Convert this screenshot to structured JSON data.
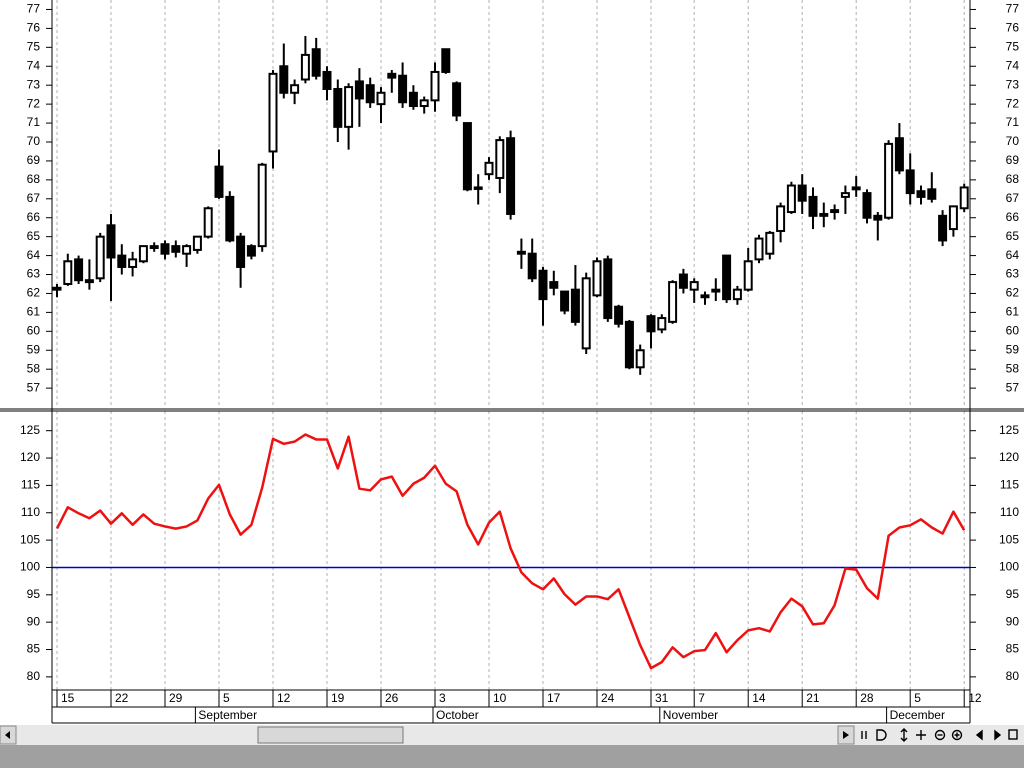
{
  "chart_data": [
    {
      "type": "candlestick",
      "categories": [
        "15",
        null,
        null,
        null,
        null,
        "22",
        null,
        null,
        null,
        null,
        "29",
        null,
        null,
        null,
        null,
        "5",
        null,
        null,
        null,
        null,
        "12",
        null,
        null,
        null,
        null,
        "19",
        null,
        null,
        null,
        null,
        "26",
        null,
        null,
        null,
        null,
        "3",
        null,
        null,
        null,
        null,
        "10",
        null,
        null,
        null,
        null,
        "17",
        null,
        null,
        null,
        null,
        "24",
        null,
        null,
        null,
        null,
        "31",
        null,
        null,
        null,
        "7",
        null,
        null,
        null,
        null,
        "14",
        null,
        null,
        null,
        null,
        "21",
        null,
        null,
        null,
        null,
        "28",
        null,
        null,
        null,
        null,
        "5",
        null,
        null,
        null,
        null,
        "12"
      ],
      "months": [
        null,
        null,
        null,
        null,
        null,
        null,
        null,
        null,
        null,
        null,
        null,
        null,
        null,
        "September",
        null,
        null,
        null,
        null,
        null,
        null,
        null,
        null,
        null,
        null,
        null,
        null,
        null,
        null,
        null,
        null,
        null,
        null,
        null,
        null,
        null,
        "October",
        null,
        null,
        null,
        null,
        null,
        null,
        null,
        null,
        null,
        null,
        null,
        null,
        null,
        null,
        null,
        null,
        null,
        null,
        null,
        null,
        "November",
        null,
        null,
        null,
        null,
        null,
        null,
        null,
        null,
        null,
        null,
        null,
        null,
        null,
        null,
        null,
        null,
        null,
        null,
        null,
        null,
        "December",
        null,
        null,
        null,
        null,
        null,
        null,
        null
      ],
      "open": [
        62.2,
        62.5,
        63.8,
        62.7,
        62.8,
        65.6,
        64,
        63.4,
        63.7,
        64.4,
        64.6,
        64.5,
        64.1,
        64.3,
        65,
        68.7,
        67.1,
        65,
        64.5,
        64.5,
        69.5,
        74,
        72.6,
        73.3,
        74.9,
        73.7,
        72.8,
        70.8,
        73.2,
        73,
        72,
        73.6,
        73.5,
        72.6,
        71.9,
        72.2,
        74.9,
        73.1,
        71,
        67.6,
        68.3,
        68.1,
        70.2,
        64.2,
        64.1,
        63.2,
        62.6,
        62.1,
        62.2,
        59.1,
        61.9,
        63.8,
        61.3,
        60.5,
        58.1,
        60.8,
        60.1,
        60.5,
        63,
        62.2,
        61.9,
        62.1,
        64,
        61.7,
        62.2,
        63.8,
        64.1,
        65.3,
        66.3,
        67.7,
        67.1,
        66.2,
        66.3,
        67.1,
        67.5,
        67.3,
        66.1,
        66,
        70.2,
        68.5,
        67.4,
        67.5,
        66.1,
        65.4,
        66.5
      ],
      "high": [
        62.5,
        64.1,
        64,
        63.8,
        65.2,
        66.2,
        64.6,
        64.2,
        64.5,
        64.7,
        64.8,
        64.8,
        64.6,
        65,
        66.6,
        69.6,
        67.4,
        65.2,
        64.6,
        68.9,
        73.8,
        75.2,
        73.3,
        75.6,
        75.5,
        74,
        73.3,
        73.1,
        73.9,
        73.4,
        72.9,
        73.8,
        74.2,
        73,
        72.4,
        74.2,
        74.9,
        73.2,
        71,
        68.3,
        69.2,
        70.3,
        70.6,
        64.9,
        64.9,
        63.4,
        63.2,
        62.1,
        63.5,
        63.1,
        63.9,
        64,
        61.4,
        60.6,
        59.3,
        60.9,
        60.9,
        62.7,
        63.3,
        62.8,
        62.1,
        62.8,
        64,
        62.4,
        64.4,
        65.1,
        65.3,
        66.8,
        67.9,
        68.3,
        67.6,
        66.8,
        66.7,
        67.7,
        68.2,
        67.5,
        66.3,
        70.1,
        71,
        69.4,
        67.7,
        68.4,
        66.4,
        66.6,
        67.8
      ],
      "low": [
        61.8,
        62.4,
        62.5,
        62.2,
        62.6,
        61.6,
        63,
        62.9,
        63.6,
        64.2,
        63.8,
        63.9,
        63.4,
        64.1,
        64.9,
        67,
        64.7,
        62.3,
        63.8,
        64.2,
        68.6,
        72.3,
        72,
        73.1,
        73.3,
        72.2,
        70,
        69.6,
        70.8,
        71.8,
        71,
        72.6,
        71.8,
        71.7,
        71.5,
        71.6,
        73.6,
        71.1,
        67.4,
        66.7,
        68,
        67.3,
        65.9,
        63.3,
        62.6,
        60.3,
        61.9,
        60.9,
        60.3,
        58.8,
        61.8,
        60.5,
        60.2,
        58,
        57.7,
        59.1,
        59.9,
        60.4,
        62,
        61.5,
        61.4,
        61.6,
        61.5,
        61.4,
        62.1,
        63.6,
        63.8,
        64.7,
        66.2,
        66.2,
        65.4,
        65.5,
        65.9,
        66.2,
        67.1,
        65.7,
        64.8,
        65.9,
        68.3,
        66.7,
        66.7,
        66.8,
        64.5,
        65,
        66.3
      ],
      "close": [
        62.3,
        63.7,
        62.7,
        62.6,
        65,
        63.9,
        63.4,
        63.8,
        64.5,
        64.5,
        64.1,
        64.2,
        64.5,
        65,
        66.5,
        67.1,
        64.8,
        63.4,
        64,
        68.8,
        73.6,
        72.6,
        73,
        74.6,
        73.5,
        72.8,
        70.8,
        72.9,
        72.3,
        72.1,
        72.6,
        73.4,
        72.1,
        71.9,
        72.2,
        73.7,
        73.7,
        71.4,
        67.5,
        67.6,
        68.9,
        70.1,
        66.2,
        64.1,
        62.8,
        61.7,
        62.3,
        61.1,
        60.5,
        62.8,
        63.7,
        60.7,
        60.4,
        58.1,
        59,
        60,
        60.7,
        62.6,
        62.3,
        62.6,
        61.8,
        62.2,
        61.7,
        62.2,
        63.7,
        64.9,
        65.2,
        66.6,
        67.7,
        66.9,
        66.1,
        66.1,
        66.4,
        67.3,
        67.6,
        66,
        65.9,
        69.9,
        68.5,
        67.3,
        67.1,
        67,
        64.8,
        66.6,
        67.6
      ],
      "up_color": "#ffffff",
      "down_color": "#000000",
      "edge_color": "#000000",
      "ylim": [
        55.95,
        77.5
      ],
      "yticks": [
        57,
        58,
        59,
        60,
        61,
        62,
        63,
        64,
        65,
        66,
        67,
        68,
        69,
        70,
        71,
        72,
        73,
        74,
        75,
        76,
        77
      ],
      "grid": true
    },
    {
      "type": "line",
      "values": [
        107.1,
        111,
        109.9,
        109,
        110.4,
        108,
        109.9,
        107.8,
        109.7,
        108,
        107.5,
        107.1,
        107.5,
        108.6,
        112.6,
        115.1,
        109.7,
        106,
        107.8,
        114.6,
        123.5,
        122.6,
        123,
        124.3,
        123.4,
        123.4,
        118.1,
        123.9,
        114.4,
        114.1,
        116.1,
        116.6,
        113.1,
        115.3,
        116.4,
        118.6,
        115.3,
        113.9,
        107.8,
        104.2,
        108.2,
        110.2,
        103.5,
        99.1,
        97.1,
        96,
        98,
        95.1,
        93.2,
        94.7,
        94.7,
        94.2,
        96,
        90.9,
        85.8,
        81.6,
        82.7,
        85.4,
        83.6,
        84.7,
        84.9,
        88,
        84.5,
        86.7,
        88.5,
        88.9,
        88.3,
        91.8,
        94.3,
        92.9,
        89.6,
        89.8,
        93.1,
        99.8,
        99.6,
        96.2,
        94.3,
        105.8,
        107.3,
        107.7,
        108.8,
        107.3,
        106.2,
        110.2,
        106.8
      ],
      "color": "#ee1111",
      "reference_line": {
        "value": 100,
        "color": "#0000cc"
      },
      "ylim": [
        77.6,
        128.6
      ],
      "yticks": [
        80,
        85,
        90,
        95,
        100,
        105,
        110,
        115,
        120,
        125
      ],
      "grid": true
    }
  ]
}
